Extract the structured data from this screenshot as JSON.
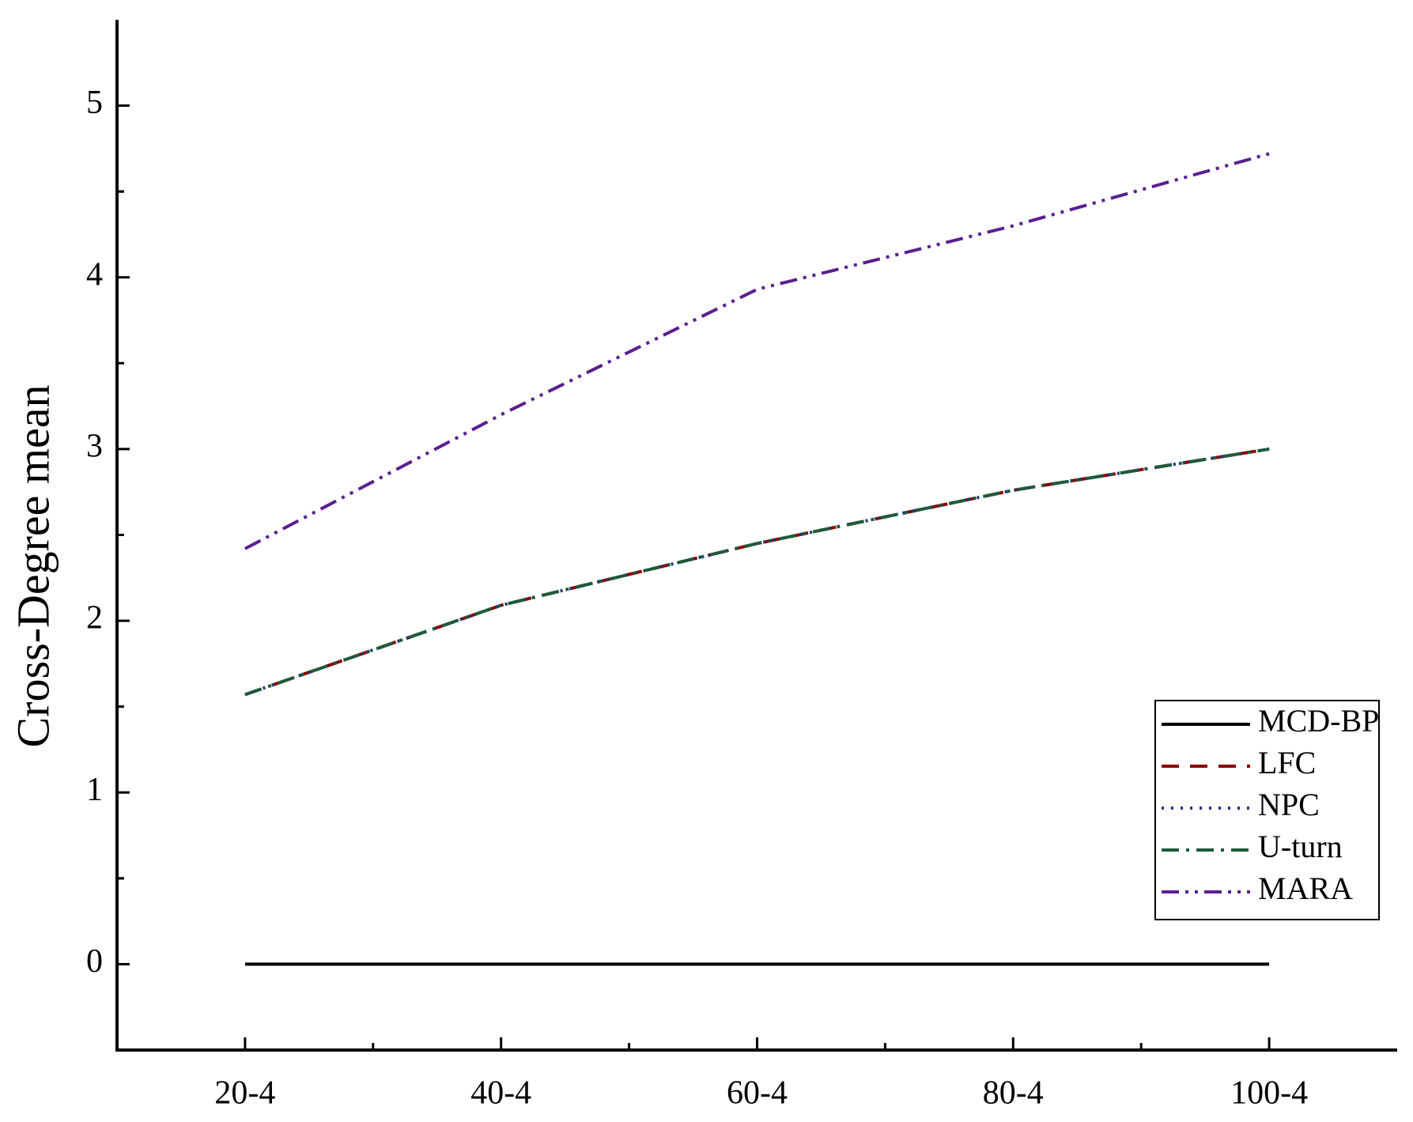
{
  "chart_data": {
    "type": "line",
    "y_label": "Cross-Degree mean",
    "categories": [
      "20-4",
      "40-4",
      "60-4",
      "80-4",
      "100-4"
    ],
    "series": [
      {
        "name": "MCD-BP",
        "color": "#000000",
        "dash": "solid",
        "values": [
          0,
          0,
          0,
          0,
          0
        ]
      },
      {
        "name": "LFC",
        "color": "#8b0000",
        "dash": "dash",
        "values": [
          1.57,
          2.09,
          2.45,
          2.76,
          3.0
        ]
      },
      {
        "name": "NPC",
        "color": "#1f3a7a",
        "dash": "dot",
        "values": [
          1.57,
          2.09,
          2.45,
          2.76,
          3.0
        ]
      },
      {
        "name": "U-turn",
        "color": "#1e5a3c",
        "dash": "dashdot",
        "values": [
          1.57,
          2.09,
          2.45,
          2.76,
          3.0
        ]
      },
      {
        "name": "MARA",
        "color": "#5b1f8f",
        "dash": "dashdotdot",
        "values": [
          2.42,
          3.2,
          3.93,
          4.3,
          4.72
        ]
      }
    ],
    "ylim": [
      -0.5,
      5.5
    ],
    "yticks": [
      0,
      1,
      2,
      3,
      4,
      5
    ],
    "legend": "lower right",
    "grid": false
  }
}
